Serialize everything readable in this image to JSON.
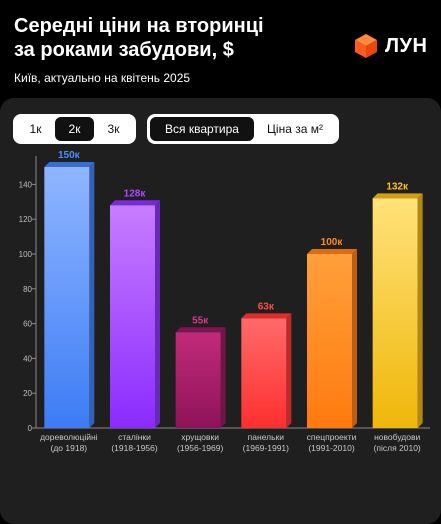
{
  "header": {
    "title": "Середні ціни на вторинці\nза роками забудови, $",
    "subtitle": "Київ, актуально на квітень 2025",
    "logo_text": "ЛУН",
    "logo_color": "#ff5a1f"
  },
  "controls": {
    "rooms": [
      {
        "label": "1к",
        "active": false
      },
      {
        "label": "2к",
        "active": true
      },
      {
        "label": "3к",
        "active": false
      }
    ],
    "metric": [
      {
        "label": "Вся квартира",
        "active": true
      },
      {
        "label": "Ціна за м²",
        "active": false
      }
    ]
  },
  "chart_data": {
    "type": "bar",
    "title": "",
    "xlabel": "",
    "ylabel": "",
    "ylim": [
      0,
      150
    ],
    "yticks": [
      0,
      20,
      40,
      60,
      80,
      100,
      120,
      140
    ],
    "grid": false,
    "categories": [
      {
        "name": "дореволюційні",
        "period": "(до 1918)"
      },
      {
        "name": "сталінки",
        "period": "(1918-1956)"
      },
      {
        "name": "хрущовки",
        "period": "(1956-1969)"
      },
      {
        "name": "панельки",
        "period": "(1969-1991)"
      },
      {
        "name": "спецпроекти",
        "period": "(1991-2010)"
      },
      {
        "name": "новобудови",
        "period": "(після 2010)"
      }
    ],
    "values": [
      150,
      128,
      55,
      63,
      100,
      132
    ],
    "value_labels": [
      "150к",
      "128к",
      "55к",
      "63к",
      "100к",
      "132к"
    ],
    "colors": [
      {
        "top": "#8fb6ff",
        "bottom": "#3d7cf5",
        "label": "#4a8bff"
      },
      {
        "top": "#c77dff",
        "bottom": "#8a2bff",
        "label": "#a64dff"
      },
      {
        "top": "#c22a78",
        "bottom": "#8e1358",
        "label": "#d63a8a"
      },
      {
        "top": "#ff6a6a",
        "bottom": "#ff2f2f",
        "label": "#ff4d4d"
      },
      {
        "top": "#ffa03a",
        "bottom": "#ff7a0f",
        "label": "#ff8c1a"
      },
      {
        "top": "#ffe27a",
        "bottom": "#f0b70a",
        "label": "#ffc21a"
      }
    ]
  }
}
